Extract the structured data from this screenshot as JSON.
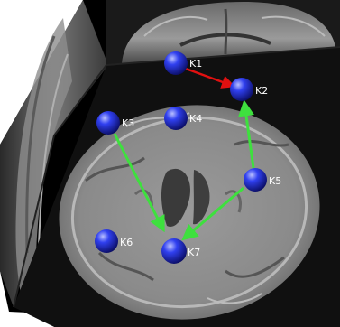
{
  "nodes": [
    {
      "id": "k1",
      "label": "K1"
    },
    {
      "id": "k2",
      "label": "K2"
    },
    {
      "id": "k3",
      "label": "K3"
    },
    {
      "id": "k4",
      "label": "K4"
    },
    {
      "id": "k5",
      "label": "K5"
    },
    {
      "id": "k6",
      "label": "K6"
    },
    {
      "id": "k7",
      "label": "K7"
    }
  ],
  "edges": [
    {
      "from": "K1",
      "to": "K2",
      "color": "#e01010"
    },
    {
      "from": "K5",
      "to": "K2",
      "color": "#3ee03e"
    },
    {
      "from": "K3",
      "to": "K7",
      "color": "#3ee03e"
    },
    {
      "from": "K5",
      "to": "K7",
      "color": "#3ee03e"
    }
  ],
  "colors": {
    "node": "#2a34e0",
    "background": "#000000"
  }
}
